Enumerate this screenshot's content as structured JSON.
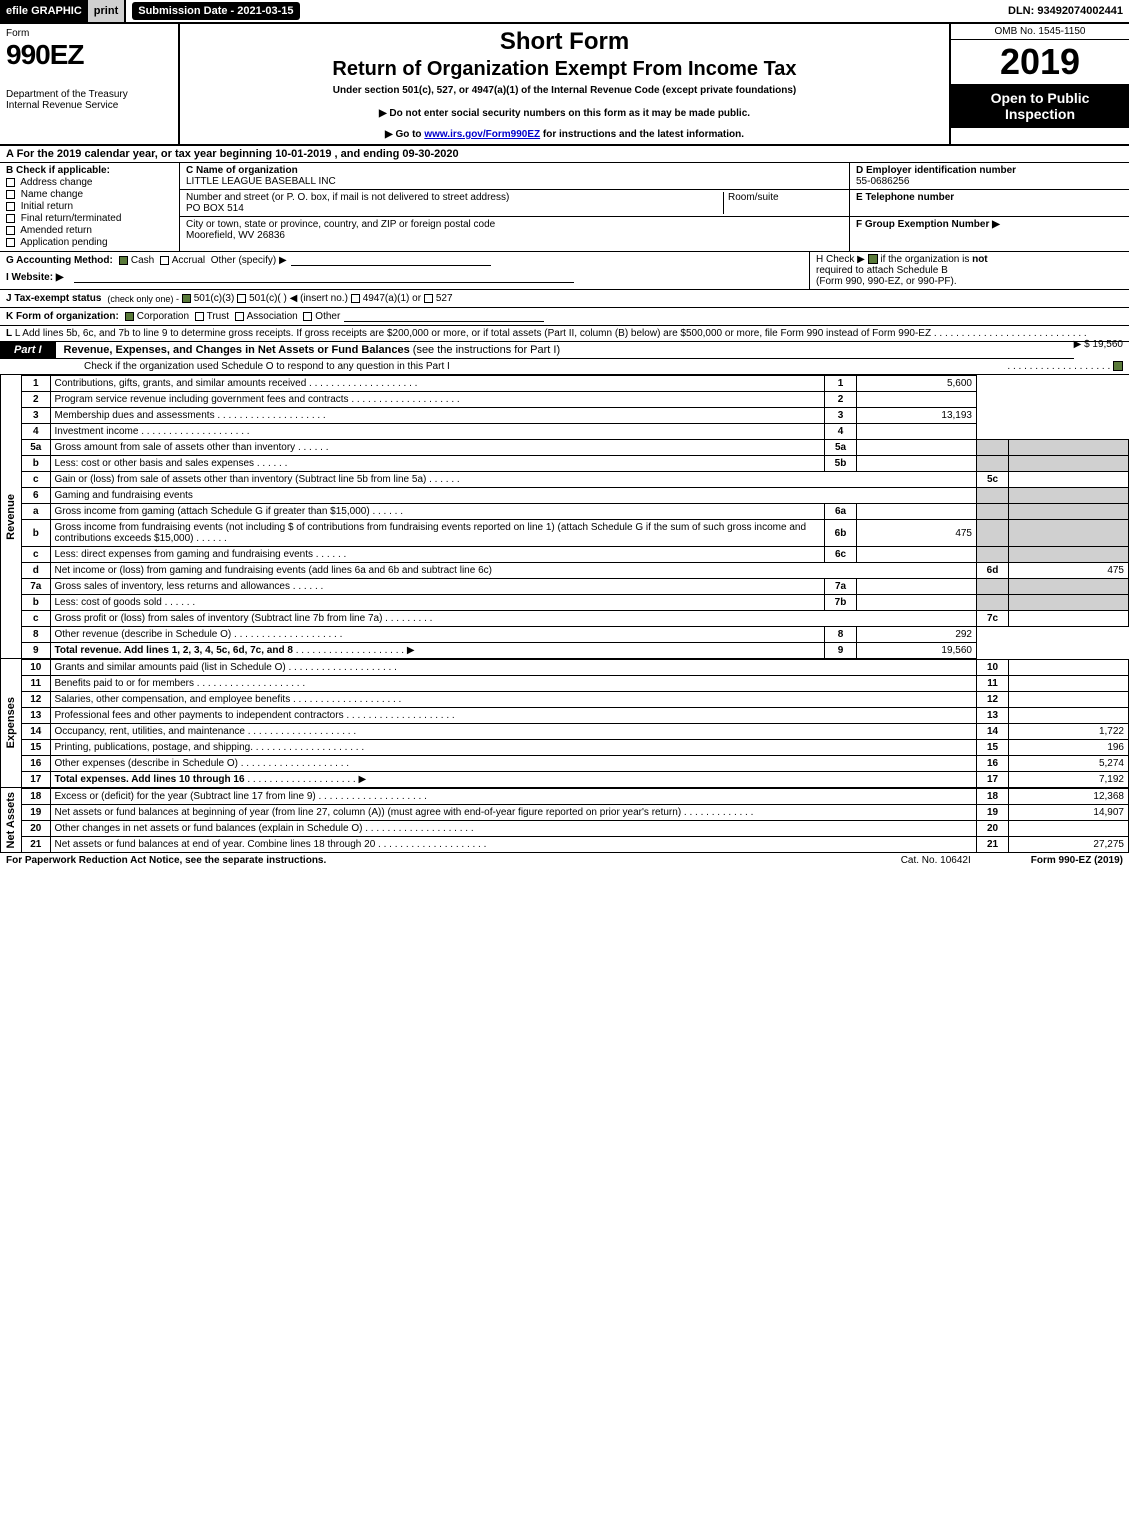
{
  "header": {
    "efile": "efile GRAPHIC",
    "print": "print",
    "submission_label": "Submission Date - 2021-03-15",
    "dln": "DLN: 93492074002441"
  },
  "title_block": {
    "form_word": "Form",
    "form_no": "990EZ",
    "dept1": "Department of the Treasury",
    "dept2": "Internal Revenue Service",
    "short_form": "Short Form",
    "return_title": "Return of Organization Exempt From Income Tax",
    "under": "Under section 501(c), 527, or 4947(a)(1) of the Internal Revenue Code (except private foundations)",
    "warn": "▶ Do not enter social security numbers on this form as it may be made public.",
    "goto_pre": "▶ Go to ",
    "goto_link": "www.irs.gov/Form990EZ",
    "goto_post": " for instructions and the latest information.",
    "omb": "OMB No. 1545-1150",
    "year": "2019",
    "open": "Open to Public Inspection"
  },
  "line_a": "A  For the 2019 calendar year, or tax year beginning 10-01-2019 , and ending 09-30-2020",
  "section_b": {
    "header": "B  Check if applicable:",
    "items": [
      "Address change",
      "Name change",
      "Initial return",
      "Final return/terminated",
      "Amended return",
      "Application pending"
    ]
  },
  "section_c": {
    "name_label": "C Name of organization",
    "name": "LITTLE LEAGUE BASEBALL INC",
    "street_label": "Number and street (or P. O. box, if mail is not delivered to street address)",
    "street": "PO BOX 514",
    "room_label": "Room/suite",
    "city_label": "City or town, state or province, country, and ZIP or foreign postal code",
    "city": "Moorefield, WV  26836"
  },
  "section_d": {
    "ein_label": "D Employer identification number",
    "ein": "55-0686256",
    "tel_label": "E Telephone number",
    "group_label": "F Group Exemption Number   ▶"
  },
  "line_g": {
    "label": "G Accounting Method:",
    "cash": "Cash",
    "accrual": "Accrual",
    "other": "Other (specify) ▶"
  },
  "line_h": {
    "pre": "H  Check ▶ ",
    "post": " if the organization is ",
    "not": "not",
    "line2": "required to attach Schedule B",
    "line3": "(Form 990, 990-EZ, or 990-PF)."
  },
  "line_i": {
    "label": "I Website: ▶"
  },
  "line_j": {
    "label": "J Tax-exempt status",
    "note": "(check only one) -",
    "o1": "501(c)(3)",
    "o2": "501(c)(  ) ◀ (insert no.)",
    "o3": "4947(a)(1) or",
    "o4": "527"
  },
  "line_k": {
    "label": "K Form of organization:",
    "o1": "Corporation",
    "o2": "Trust",
    "o3": "Association",
    "o4": "Other"
  },
  "line_l": {
    "text": "L Add lines 5b, 6c, and 7b to line 9 to determine gross receipts. If gross receipts are $200,000 or more, or if total assets (Part II, column (B) below) are $500,000 or more, file Form 990 instead of Form 990-EZ",
    "amount": "▶ $ 19,560"
  },
  "part1": {
    "tag": "Part I",
    "title": "Revenue, Expenses, and Changes in Net Assets or Fund Balances",
    "title_note": "(see the instructions for Part I)",
    "sub": "Check if the organization used Schedule O to respond to any question in this Part I"
  },
  "revenue_label": "Revenue",
  "expenses_label": "Expenses",
  "netassets_label": "Net Assets",
  "lines": {
    "1": {
      "d": "Contributions, gifts, grants, and similar amounts received",
      "a": "5,600"
    },
    "2": {
      "d": "Program service revenue including government fees and contracts",
      "a": ""
    },
    "3": {
      "d": "Membership dues and assessments",
      "a": "13,193"
    },
    "4": {
      "d": "Investment income",
      "a": ""
    },
    "5a": {
      "d": "Gross amount from sale of assets other than inventory",
      "sv": ""
    },
    "5b": {
      "d": "Less: cost or other basis and sales expenses",
      "sv": ""
    },
    "5c": {
      "d": "Gain or (loss) from sale of assets other than inventory (Subtract line 5b from line 5a)",
      "a": ""
    },
    "6": {
      "d": "Gaming and fundraising events"
    },
    "6a": {
      "d": "Gross income from gaming (attach Schedule G if greater than $15,000)",
      "sv": ""
    },
    "6b": {
      "d": "Gross income from fundraising events (not including $                            of contributions from fundraising events reported on line 1) (attach Schedule G if the sum of such gross income and contributions exceeds $15,000)",
      "sv": "475"
    },
    "6c": {
      "d": "Less: direct expenses from gaming and fundraising events",
      "sv": ""
    },
    "6d": {
      "d": "Net income or (loss) from gaming and fundraising events (add lines 6a and 6b and subtract line 6c)",
      "a": "475"
    },
    "7a": {
      "d": "Gross sales of inventory, less returns and allowances",
      "sv": ""
    },
    "7b": {
      "d": "Less: cost of goods sold",
      "sv": ""
    },
    "7c": {
      "d": "Gross profit or (loss) from sales of inventory (Subtract line 7b from line 7a)",
      "a": ""
    },
    "8": {
      "d": "Other revenue (describe in Schedule O)",
      "a": "292"
    },
    "9": {
      "d": "Total revenue. Add lines 1, 2, 3, 4, 5c, 6d, 7c, and 8",
      "a": "19,560",
      "bold": true
    },
    "10": {
      "d": "Grants and similar amounts paid (list in Schedule O)",
      "a": ""
    },
    "11": {
      "d": "Benefits paid to or for members",
      "a": ""
    },
    "12": {
      "d": "Salaries, other compensation, and employee benefits",
      "a": ""
    },
    "13": {
      "d": "Professional fees and other payments to independent contractors",
      "a": ""
    },
    "14": {
      "d": "Occupancy, rent, utilities, and maintenance",
      "a": "1,722"
    },
    "15": {
      "d": "Printing, publications, postage, and shipping.",
      "a": "196"
    },
    "16": {
      "d": "Other expenses (describe in Schedule O)",
      "a": "5,274"
    },
    "17": {
      "d": "Total expenses. Add lines 10 through 16",
      "a": "7,192",
      "bold": true
    },
    "18": {
      "d": "Excess or (deficit) for the year (Subtract line 17 from line 9)",
      "a": "12,368"
    },
    "19": {
      "d": "Net assets or fund balances at beginning of year (from line 27, column (A)) (must agree with end-of-year figure reported on prior year's return)",
      "a": "14,907"
    },
    "20": {
      "d": "Other changes in net assets or fund balances (explain in Schedule O)",
      "a": ""
    },
    "21": {
      "d": "Net assets or fund balances at end of year. Combine lines 18 through 20",
      "a": "27,275"
    }
  },
  "footer": {
    "left": "For Paperwork Reduction Act Notice, see the separate instructions.",
    "mid": "Cat. No. 10642I",
    "right": "Form 990-EZ (2019)"
  }
}
